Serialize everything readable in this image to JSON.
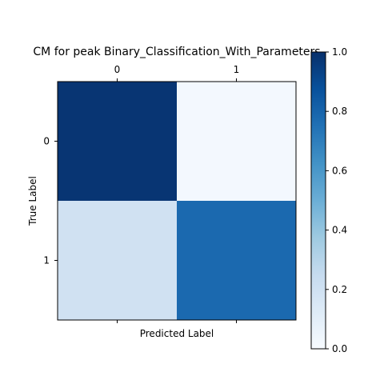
{
  "chart_data": {
    "type": "heatmap",
    "title": "CM for peak Binary_Classification_With_Parameters",
    "xlabel": "Predicted Label",
    "ylabel": "True Label",
    "x_categories": [
      "0",
      "1"
    ],
    "y_categories": [
      "0",
      "1"
    ],
    "values": [
      [
        0.98,
        0.02
      ],
      [
        0.2,
        0.78
      ]
    ],
    "colormap": "Blues",
    "colorbar": {
      "range": [
        0.0,
        1.0
      ],
      "ticks": [
        "0.0",
        "0.2",
        "0.4",
        "0.6",
        "0.8",
        "1.0"
      ]
    },
    "grid": false
  }
}
